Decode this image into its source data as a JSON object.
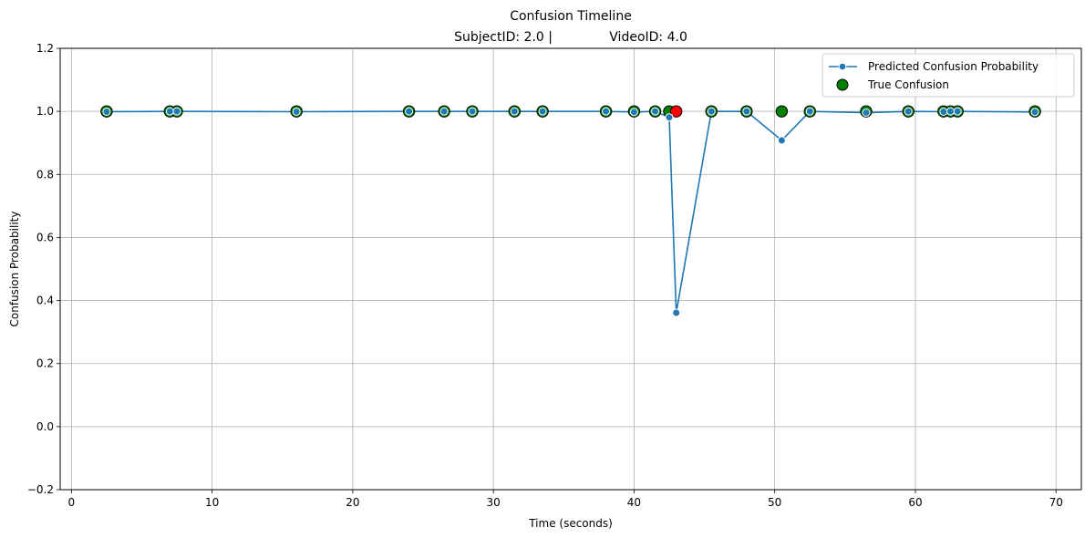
{
  "chart_data": {
    "type": "line",
    "title_line1": "Confusion Timeline",
    "title_line2": "SubjectID: 2.0 |              VideoID: 4.0",
    "xlabel": "Time (seconds)",
    "ylabel": "Confusion Probability",
    "xlim": [
      -0.8,
      71.8
    ],
    "ylim": [
      -0.2,
      1.2
    ],
    "xticks": [
      0,
      10,
      20,
      30,
      40,
      50,
      60,
      70
    ],
    "xtick_labels": [
      "0",
      "10",
      "20",
      "30",
      "40",
      "50",
      "60",
      "70"
    ],
    "yticks": [
      -0.2,
      0.0,
      0.2,
      0.4,
      0.6,
      0.8,
      1.0,
      1.2
    ],
    "ytick_labels": [
      "−0.2",
      "0.0",
      "0.2",
      "0.4",
      "0.6",
      "0.8",
      "1.0",
      "1.2"
    ],
    "grid": true,
    "legend_position": "top-right",
    "series": [
      {
        "name": "Predicted Confusion Probability",
        "color": "#1f77b4",
        "marker": "circle",
        "x": [
          2.5,
          7.0,
          7.5,
          16.0,
          24.0,
          26.5,
          28.5,
          31.5,
          33.5,
          38.0,
          40.0,
          41.5,
          42.5,
          43.0,
          45.5,
          48.0,
          50.5,
          52.5,
          56.5,
          59.5,
          62.0,
          62.5,
          63.0,
          68.5
        ],
        "y": [
          0.999,
          1.0,
          1.0,
          0.999,
          1.0,
          1.0,
          1.0,
          1.0,
          1.0,
          1.0,
          0.998,
          1.0,
          0.981,
          0.361,
          1.0,
          1.0,
          0.908,
          1.0,
          0.996,
          1.0,
          0.999,
          1.0,
          1.0,
          0.998
        ]
      }
    ],
    "true_confusion": {
      "name": "True Confusion",
      "legend_color": "#008000",
      "points": [
        {
          "x": 2.5,
          "y": 1.0,
          "color": "#008000"
        },
        {
          "x": 7.0,
          "y": 1.0,
          "color": "#008000"
        },
        {
          "x": 7.5,
          "y": 1.0,
          "color": "#008000"
        },
        {
          "x": 16.0,
          "y": 1.0,
          "color": "#008000"
        },
        {
          "x": 24.0,
          "y": 1.0,
          "color": "#008000"
        },
        {
          "x": 26.5,
          "y": 1.0,
          "color": "#008000"
        },
        {
          "x": 28.5,
          "y": 1.0,
          "color": "#008000"
        },
        {
          "x": 31.5,
          "y": 1.0,
          "color": "#008000"
        },
        {
          "x": 33.5,
          "y": 1.0,
          "color": "#008000"
        },
        {
          "x": 38.0,
          "y": 1.0,
          "color": "#008000"
        },
        {
          "x": 40.0,
          "y": 1.0,
          "color": "#008000"
        },
        {
          "x": 41.5,
          "y": 1.0,
          "color": "#008000"
        },
        {
          "x": 42.5,
          "y": 1.0,
          "color": "#008000"
        },
        {
          "x": 43.0,
          "y": 1.0,
          "color": "#ff0000"
        },
        {
          "x": 45.5,
          "y": 1.0,
          "color": "#008000"
        },
        {
          "x": 48.0,
          "y": 1.0,
          "color": "#008000"
        },
        {
          "x": 50.5,
          "y": 1.0,
          "color": "#008000"
        },
        {
          "x": 52.5,
          "y": 1.0,
          "color": "#008000"
        },
        {
          "x": 56.5,
          "y": 1.0,
          "color": "#008000"
        },
        {
          "x": 59.5,
          "y": 1.0,
          "color": "#008000"
        },
        {
          "x": 62.0,
          "y": 1.0,
          "color": "#008000"
        },
        {
          "x": 62.5,
          "y": 1.0,
          "color": "#008000"
        },
        {
          "x": 63.0,
          "y": 1.0,
          "color": "#008000"
        },
        {
          "x": 68.5,
          "y": 1.0,
          "color": "#008000"
        }
      ]
    }
  }
}
